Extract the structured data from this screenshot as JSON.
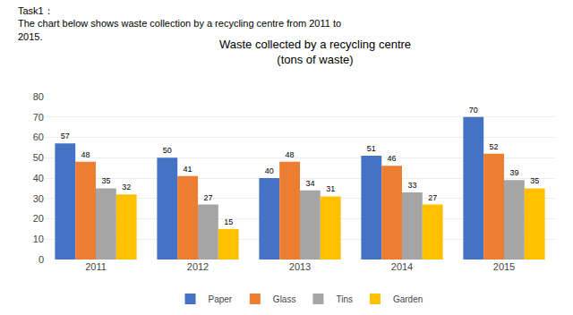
{
  "chart_data": {
    "type": "bar",
    "title": "Waste collected by a recycling centre\n(tons of waste)",
    "annotations": [
      "Task1：",
      "The chart below shows waste collection by a recycling centre from 2011 to",
      "2015."
    ],
    "categories": [
      "2011",
      "2012",
      "2013",
      "2014",
      "2015"
    ],
    "series": [
      {
        "name": "Paper",
        "color": "#4472C4",
        "values": [
          57,
          50,
          40,
          51,
          70
        ]
      },
      {
        "name": "Glass",
        "color": "#ED7D31",
        "values": [
          48,
          41,
          48,
          46,
          52
        ]
      },
      {
        "name": "Tins",
        "color": "#A5A5A5",
        "values": [
          35,
          27,
          34,
          33,
          39
        ]
      },
      {
        "name": "Garden",
        "color": "#FFC000",
        "values": [
          32,
          15,
          31,
          27,
          35
        ]
      }
    ],
    "ylim": [
      0,
      80
    ],
    "yticks": [
      0,
      10,
      20,
      30,
      40,
      50,
      60,
      70,
      80
    ],
    "grid": true,
    "data_labels": true,
    "legend": "bottom"
  }
}
